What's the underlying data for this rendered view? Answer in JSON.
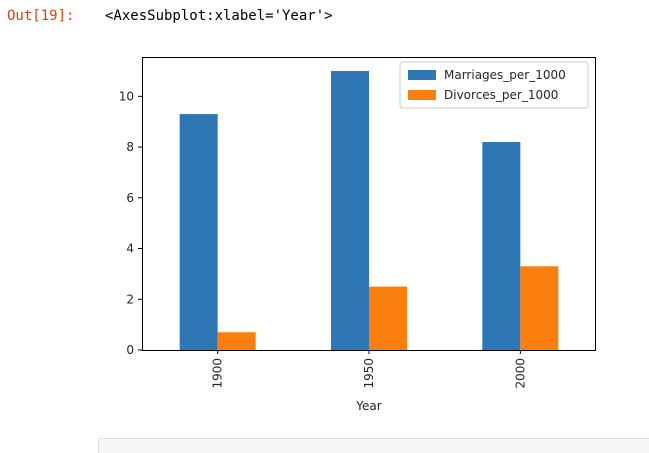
{
  "output": {
    "prompt": "Out[19]:",
    "repr": "<AxesSubplot:xlabel='Year'>"
  },
  "colors": {
    "marriages": "#2f77b4",
    "divorces": "#fb7f0e",
    "axis": "#000000",
    "text": "#262626"
  },
  "chart_data": {
    "type": "bar",
    "categories": [
      "1900",
      "1950",
      "2000"
    ],
    "series": [
      {
        "name": "Marriages_per_1000",
        "values": [
          9.3,
          11.0,
          8.2
        ]
      },
      {
        "name": "Divorces_per_1000",
        "values": [
          0.7,
          2.5,
          3.3
        ]
      }
    ],
    "xlabel": "Year",
    "ylabel": "",
    "ylim": [
      0,
      11.55
    ],
    "yticks": [
      0,
      2,
      4,
      6,
      8,
      10
    ],
    "xtick_rotation": "vertical",
    "grid": false,
    "legend_position": "top-right"
  }
}
